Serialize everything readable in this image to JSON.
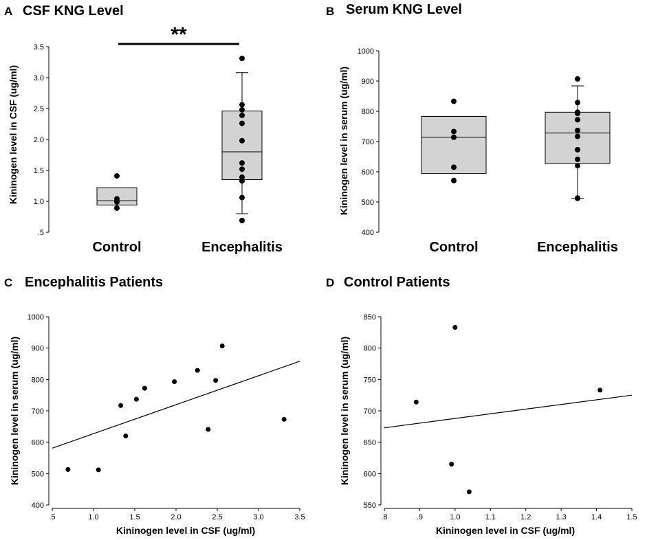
{
  "chart_data": [
    {
      "panel": "A",
      "type": "box",
      "title": "CSF KNG Level",
      "ylabel": "Kininogen level in CSF (ug/ml)",
      "ylim": [
        0.5,
        3.5
      ],
      "yticks": [
        0.5,
        1.0,
        1.5,
        2.0,
        2.5,
        3.0,
        3.5
      ],
      "ytick_labels": [
        ".5",
        "1.0",
        "1.5",
        "2.0",
        "2.5",
        "3.0",
        "3.5"
      ],
      "categories": [
        "Control",
        "Encephalitis"
      ],
      "boxes": [
        {
          "name": "Control",
          "q1": 0.94,
          "median": 1.01,
          "q3": 1.22,
          "whisker_low": null,
          "whisker_high": null,
          "points": [
            1.41,
            1.04,
            1.0,
            0.99,
            0.89
          ]
        },
        {
          "name": "Encephalitis",
          "q1": 1.35,
          "median": 1.8,
          "q3": 2.46,
          "whisker_low": 0.8,
          "whisker_high": 3.08,
          "points": [
            3.31,
            2.56,
            2.48,
            2.39,
            2.26,
            1.98,
            1.62,
            1.52,
            1.39,
            1.33,
            1.06,
            0.69
          ]
        }
      ],
      "annotation": "**"
    },
    {
      "panel": "B",
      "type": "box",
      "title": "Serum KNG Level",
      "ylabel": "Kininogen level in serum (ug/ml)",
      "ylim": [
        400,
        1000
      ],
      "yticks": [
        400,
        500,
        600,
        700,
        800,
        900,
        1000
      ],
      "ytick_labels": [
        "400",
        "500",
        "600",
        "700",
        "800",
        "900",
        "1000"
      ],
      "categories": [
        "Control",
        "Encephalitis"
      ],
      "boxes": [
        {
          "name": "Control",
          "q1": 594,
          "median": 714,
          "q3": 783,
          "whisker_low": null,
          "whisker_high": null,
          "points": [
            833,
            733,
            714,
            615,
            571
          ]
        },
        {
          "name": "Encephalitis",
          "q1": 627,
          "median": 728,
          "q3": 797,
          "whisker_low": 512,
          "whisker_high": 884,
          "points": [
            907,
            829,
            797,
            793,
            772,
            737,
            717,
            673,
            641,
            620,
            513,
            512
          ]
        }
      ]
    },
    {
      "panel": "C",
      "type": "scatter",
      "title": "Encephalitis Patients",
      "xlabel": "Kininogen level in CSF (ug/ml)",
      "ylabel": "Kininogen level in serum (ug/ml)",
      "xlim": [
        0.5,
        3.5
      ],
      "ylim": [
        400,
        1000
      ],
      "xticks": [
        0.5,
        1.0,
        1.5,
        2.0,
        2.5,
        3.0,
        3.5
      ],
      "xtick_labels": [
        ".5",
        "1.0",
        "1.5",
        "2.0",
        "2.5",
        "3.0",
        "3.5"
      ],
      "yticks": [
        400,
        500,
        600,
        700,
        800,
        900,
        1000
      ],
      "ytick_labels": [
        "400",
        "500",
        "600",
        "700",
        "800",
        "900",
        "1000"
      ],
      "points": [
        {
          "x": 0.69,
          "y": 513
        },
        {
          "x": 1.06,
          "y": 512
        },
        {
          "x": 1.33,
          "y": 717
        },
        {
          "x": 1.39,
          "y": 620
        },
        {
          "x": 1.52,
          "y": 737
        },
        {
          "x": 1.62,
          "y": 772
        },
        {
          "x": 1.98,
          "y": 793
        },
        {
          "x": 2.26,
          "y": 829
        },
        {
          "x": 2.39,
          "y": 641
        },
        {
          "x": 2.48,
          "y": 797
        },
        {
          "x": 2.56,
          "y": 907
        },
        {
          "x": 3.31,
          "y": 673
        }
      ],
      "fit_line": {
        "x1": 0.5,
        "y1": 581,
        "x2": 3.5,
        "y2": 858
      }
    },
    {
      "panel": "D",
      "type": "scatter",
      "title": "Control Patients",
      "xlabel": "Kininogen level in CSF (ug/ml)",
      "ylabel": "Kininogen level in serum (ug/ml)",
      "xlim": [
        0.8,
        1.5
      ],
      "ylim": [
        550,
        850
      ],
      "xticks": [
        0.8,
        0.9,
        1.0,
        1.1,
        1.2,
        1.3,
        1.4,
        1.5
      ],
      "xtick_labels": [
        ".8",
        ".9",
        "1.0",
        "1.1",
        "1.2",
        "1.3",
        "1.4",
        "1.5"
      ],
      "yticks": [
        550,
        600,
        650,
        700,
        750,
        800,
        850
      ],
      "ytick_labels": [
        "550",
        "600",
        "650",
        "700",
        "750",
        "800",
        "850"
      ],
      "points": [
        {
          "x": 0.89,
          "y": 714
        },
        {
          "x": 0.99,
          "y": 615
        },
        {
          "x": 1.0,
          "y": 833
        },
        {
          "x": 1.04,
          "y": 571
        },
        {
          "x": 1.41,
          "y": 733
        }
      ],
      "fit_line": {
        "x1": 0.8,
        "y1": 673,
        "x2": 1.5,
        "y2": 725
      }
    }
  ]
}
